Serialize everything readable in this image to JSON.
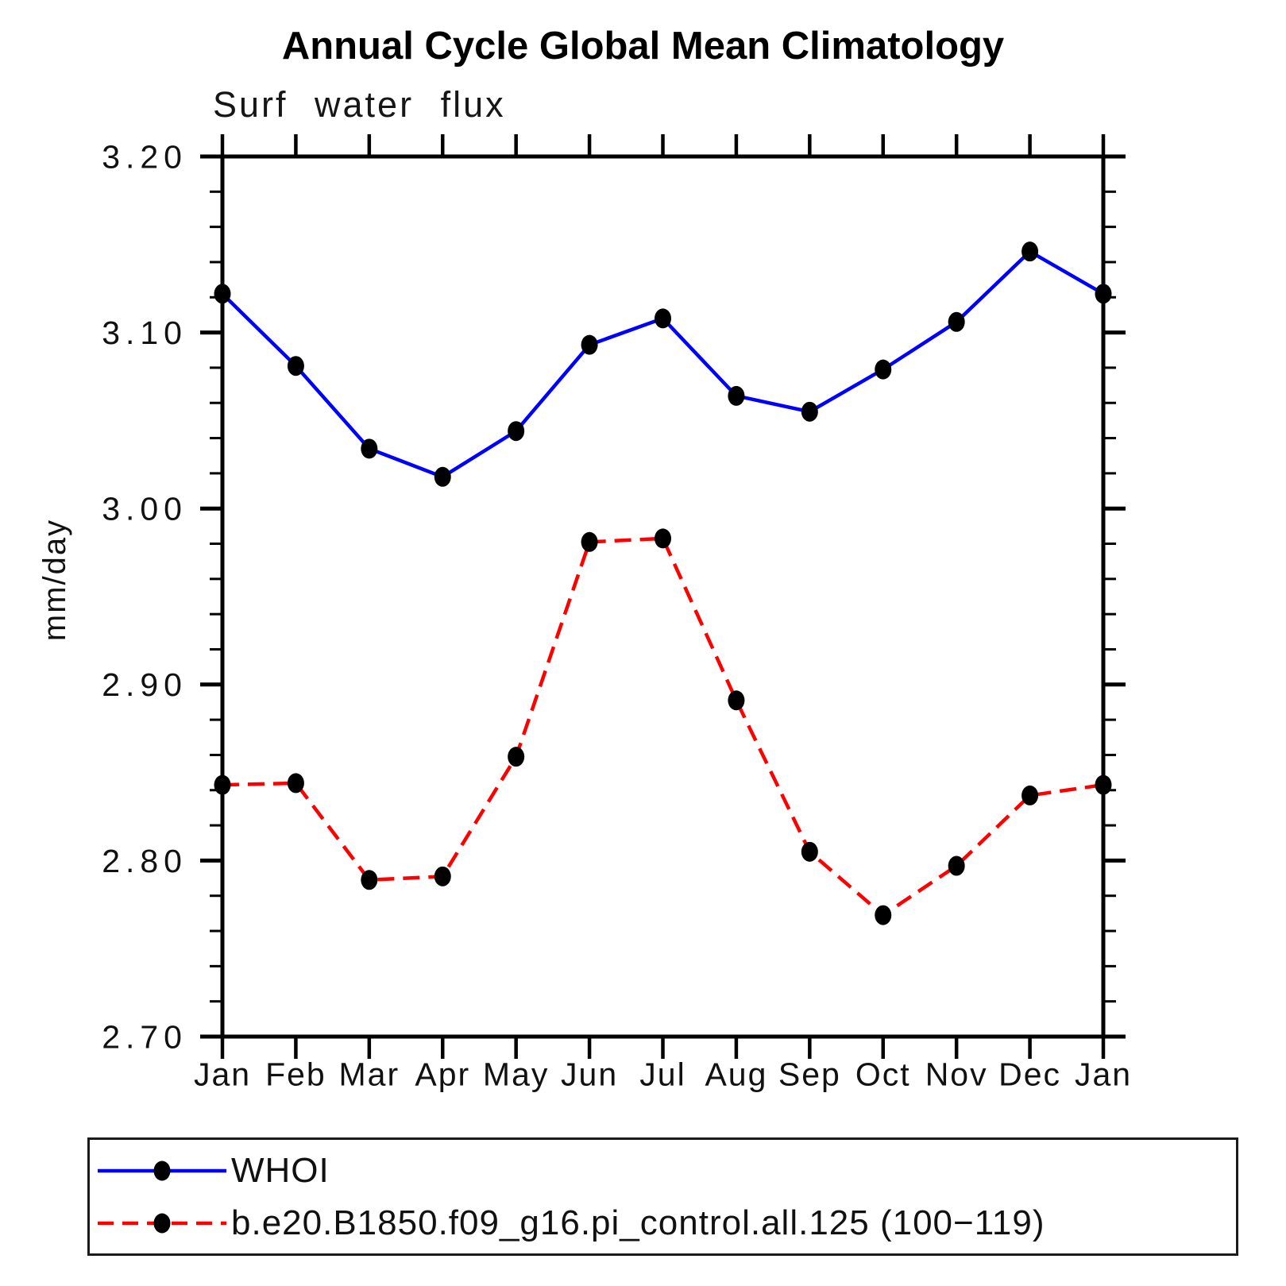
{
  "chart_data": {
    "type": "line",
    "title": "Annual Cycle Global Mean Climatology",
    "subtitle": "Surf water flux",
    "ylabel": "mm/day",
    "ylim": [
      2.7,
      3.2
    ],
    "ytick_step": 0.1,
    "yminor_step": 0.02,
    "ytick_labels": [
      "2.70",
      "2.80",
      "2.90",
      "3.00",
      "3.10",
      "3.20"
    ],
    "categories": [
      "Jan",
      "Feb",
      "Mar",
      "Apr",
      "May",
      "Jun",
      "Jul",
      "Aug",
      "Sep",
      "Oct",
      "Nov",
      "Dec",
      "Jan"
    ],
    "series": [
      {
        "name": "WHOI",
        "color": "#0000ff",
        "line_style": "solid",
        "marker": "filled-oval",
        "marker_color": "#000000",
        "values": [
          3.122,
          3.081,
          3.034,
          3.018,
          3.044,
          3.093,
          3.108,
          3.064,
          3.055,
          3.079,
          3.106,
          3.146,
          3.122
        ]
      },
      {
        "name": "b.e20.B1850.f09_g16.pi_control.all.125 (100−119)",
        "color": "#ff0000",
        "line_style": "dashed",
        "marker": "filled-oval",
        "marker_color": "#000000",
        "values": [
          2.843,
          2.844,
          2.789,
          2.791,
          2.859,
          2.981,
          2.983,
          2.891,
          2.805,
          2.769,
          2.797,
          2.837,
          2.843
        ]
      }
    ],
    "grid": false,
    "legend_position": "bottom-left-box",
    "colors": {
      "axis": "#000000",
      "background": "#ffffff"
    }
  }
}
